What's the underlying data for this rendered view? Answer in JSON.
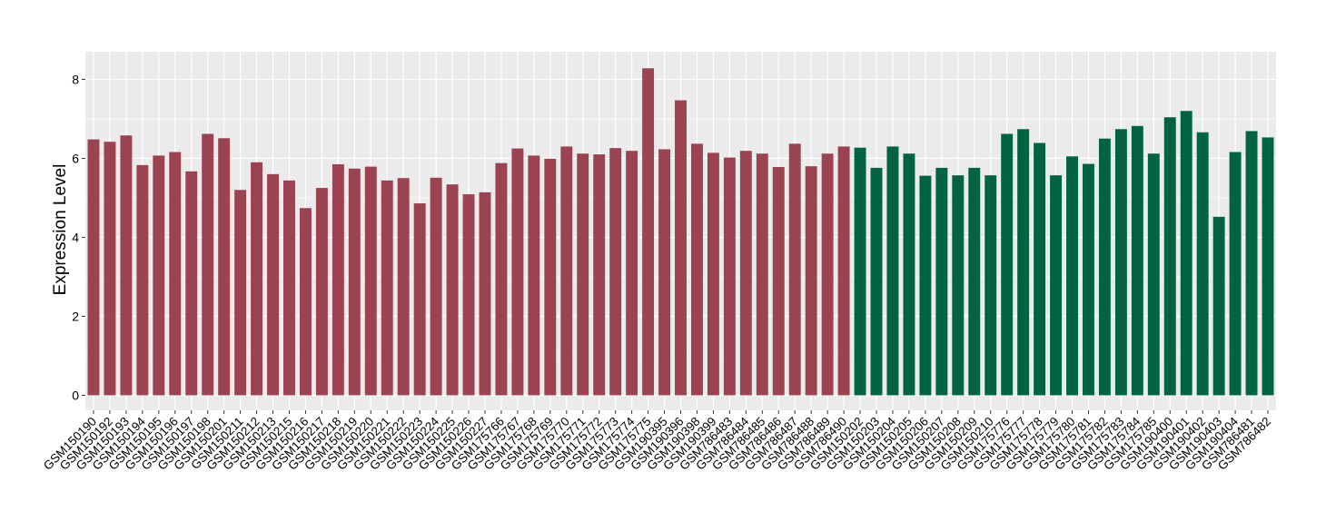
{
  "chart_data": {
    "type": "bar",
    "title": "",
    "xlabel": "",
    "ylabel": "Expression Level",
    "ylim": [
      -0.38,
      8.7
    ],
    "yticks": [
      0,
      2,
      4,
      6,
      8
    ],
    "grid": true,
    "legend": "none",
    "colors": {
      "group_1": "#9b4350",
      "group_2": "#026342"
    },
    "panel_background": "#ebebeb",
    "gridline_color": "#ffffff",
    "categories": [
      "GSM150190",
      "GSM150192",
      "GSM150193",
      "GSM150194",
      "GSM150195",
      "GSM150196",
      "GSM150197",
      "GSM150198",
      "GSM150201",
      "GSM150211",
      "GSM150212",
      "GSM150213",
      "GSM150215",
      "GSM150216",
      "GSM150217",
      "GSM150218",
      "GSM150219",
      "GSM150220",
      "GSM150221",
      "GSM150222",
      "GSM150223",
      "GSM150224",
      "GSM150225",
      "GSM150226",
      "GSM150227",
      "GSM175766",
      "GSM175767",
      "GSM175768",
      "GSM175769",
      "GSM175770",
      "GSM175771",
      "GSM175772",
      "GSM175773",
      "GSM175774",
      "GSM175775",
      "GSM190395",
      "GSM190396",
      "GSM190398",
      "GSM190399",
      "GSM786483",
      "GSM786484",
      "GSM786485",
      "GSM786486",
      "GSM786487",
      "GSM786488",
      "GSM786489",
      "GSM786490",
      "GSM150202",
      "GSM150203",
      "GSM150204",
      "GSM150205",
      "GSM150206",
      "GSM150207",
      "GSM150208",
      "GSM150209",
      "GSM150210",
      "GSM175776",
      "GSM175777",
      "GSM175778",
      "GSM175779",
      "GSM175780",
      "GSM175781",
      "GSM175782",
      "GSM175783",
      "GSM175784",
      "GSM175785",
      "GSM190400",
      "GSM190401",
      "GSM190402",
      "GSM190403",
      "GSM190404",
      "GSM786481",
      "GSM786482"
    ],
    "values": [
      6.48,
      6.42,
      6.58,
      5.83,
      6.07,
      6.16,
      5.67,
      6.62,
      6.51,
      5.2,
      5.9,
      5.6,
      5.44,
      4.74,
      5.25,
      5.85,
      5.74,
      5.79,
      5.44,
      5.5,
      4.86,
      5.51,
      5.34,
      5.09,
      5.14,
      5.88,
      6.25,
      6.07,
      5.99,
      6.3,
      6.12,
      6.1,
      6.26,
      6.19,
      8.28,
      6.23,
      7.47,
      6.37,
      6.14,
      6.02,
      6.19,
      6.12,
      5.78,
      6.37,
      5.8,
      6.12,
      6.3,
      6.27,
      5.76,
      6.3,
      6.12,
      5.56,
      5.76,
      5.57,
      5.76,
      5.57,
      6.62,
      6.74,
      6.39,
      5.57,
      6.05,
      5.86,
      6.5,
      6.74,
      6.82,
      6.12,
      7.04,
      7.2,
      6.66,
      4.52,
      6.16,
      6.69,
      6.53
    ],
    "groups": [
      1,
      1,
      1,
      1,
      1,
      1,
      1,
      1,
      1,
      1,
      1,
      1,
      1,
      1,
      1,
      1,
      1,
      1,
      1,
      1,
      1,
      1,
      1,
      1,
      1,
      1,
      1,
      1,
      1,
      1,
      1,
      1,
      1,
      1,
      1,
      1,
      1,
      1,
      1,
      1,
      1,
      1,
      1,
      1,
      1,
      1,
      1,
      2,
      2,
      2,
      2,
      2,
      2,
      2,
      2,
      2,
      2,
      2,
      2,
      2,
      2,
      2,
      2,
      2,
      2,
      2,
      2,
      2,
      2,
      2,
      2,
      2,
      2
    ]
  }
}
